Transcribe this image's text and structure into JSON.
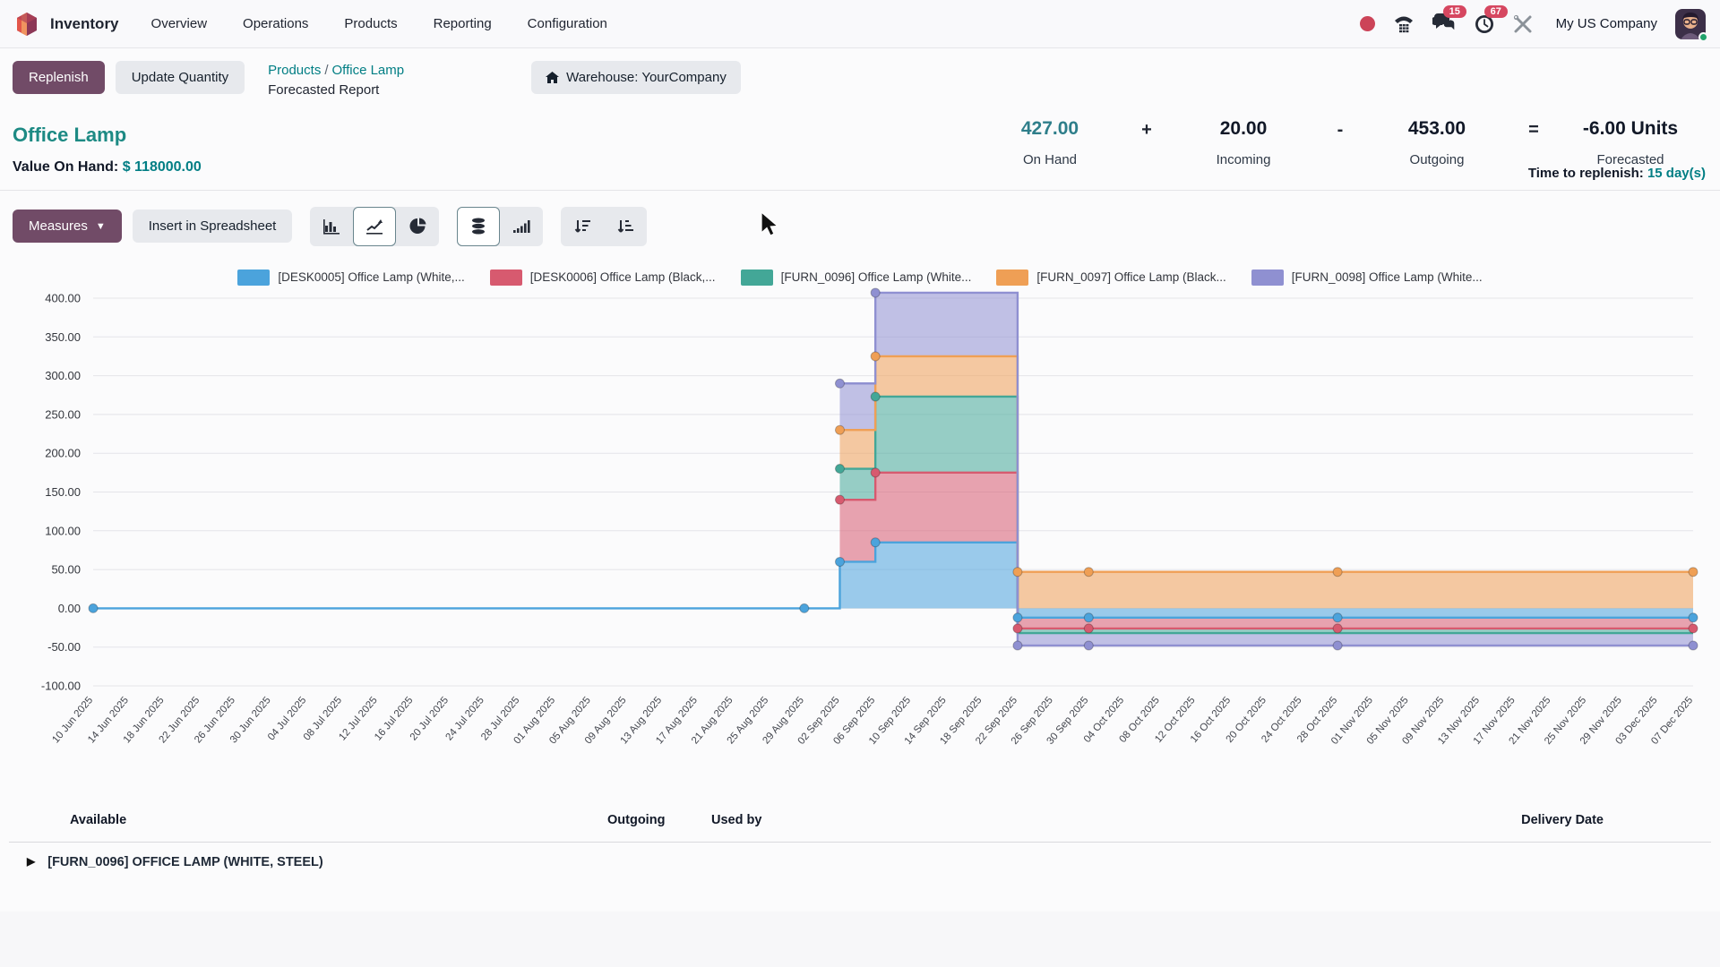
{
  "nav": {
    "app_label": "Inventory",
    "items": [
      "Overview",
      "Operations",
      "Products",
      "Reporting",
      "Configuration"
    ],
    "message_badge": "15",
    "activity_badge": "67",
    "company_label": "My US Company"
  },
  "control_panel": {
    "replenish_label": "Replenish",
    "update_quantity_label": "Update Quantity",
    "breadcrumb_products": "Products",
    "breadcrumb_sep": "/",
    "breadcrumb_product": "Office Lamp",
    "breadcrumb_active": "Forecasted Report",
    "warehouse_facet": "Warehouse: YourCompany"
  },
  "header": {
    "title": "Office Lamp",
    "value_on_hand_label": "Value On Hand:",
    "value_on_hand": "$ 118000.00",
    "kpis": [
      {
        "type": "metric",
        "value": "427.00",
        "label": "On Hand",
        "accent": true
      },
      {
        "type": "op",
        "value": "+"
      },
      {
        "type": "metric",
        "value": "20.00",
        "label": "Incoming",
        "accent": false
      },
      {
        "type": "op",
        "value": "-"
      },
      {
        "type": "metric",
        "value": "453.00",
        "label": "Outgoing",
        "accent": false
      },
      {
        "type": "op",
        "value": "="
      },
      {
        "type": "metric",
        "value": "-6.00 Units",
        "label": "Forecasted",
        "accent": false
      }
    ],
    "time_to_replenish_label": "Time to replenish:",
    "time_to_replenish_value": "15 day(s)"
  },
  "toolbar": {
    "measures_label": "Measures",
    "insert_label": "Insert in Spreadsheet"
  },
  "chart_data": {
    "type": "area",
    "subtype": "stepped-stacked-forecast",
    "title": "",
    "legend_position": "top",
    "grid": "horizontal",
    "ylim": [
      -100,
      400
    ],
    "y_ticks": [
      "400.00",
      "350.00",
      "300.00",
      "250.00",
      "200.00",
      "150.00",
      "100.00",
      "50.00",
      "0.00",
      "-50.00",
      "-100.00"
    ],
    "x_categories": [
      "10 Jun 2025",
      "14 Jun 2025",
      "18 Jun 2025",
      "22 Jun 2025",
      "26 Jun 2025",
      "30 Jun 2025",
      "04 Jul 2025",
      "08 Jul 2025",
      "12 Jul 2025",
      "16 Jul 2025",
      "20 Jul 2025",
      "24 Jul 2025",
      "28 Jul 2025",
      "01 Aug 2025",
      "05 Aug 2025",
      "09 Aug 2025",
      "13 Aug 2025",
      "17 Aug 2025",
      "21 Aug 2025",
      "25 Aug 2025",
      "29 Aug 2025",
      "02 Sep 2025",
      "06 Sep 2025",
      "10 Sep 2025",
      "14 Sep 2025",
      "18 Sep 2025",
      "22 Sep 2025",
      "26 Sep 2025",
      "30 Sep 2025",
      "04 Oct 2025",
      "08 Oct 2025",
      "12 Oct 2025",
      "16 Oct 2025",
      "20 Oct 2025",
      "24 Oct 2025",
      "28 Oct 2025",
      "01 Nov 2025",
      "05 Nov 2025",
      "09 Nov 2025",
      "13 Nov 2025",
      "17 Nov 2025",
      "21 Nov 2025",
      "25 Nov 2025",
      "29 Nov 2025",
      "03 Dec 2025",
      "07 Dec 2025"
    ],
    "note": "points are stepped cumulative stock levels (t = x_categories index, v = units); fill_to is the lower boundary of each colored band",
    "series": [
      {
        "name": "[DESK0005] Office Lamp (White,...",
        "color": "#4BA3DC",
        "points": [
          {
            "t": 0,
            "v": 0,
            "m": true
          },
          {
            "t": 20,
            "v": 0,
            "m": true
          },
          {
            "t": 21,
            "v": 60,
            "m": true
          },
          {
            "t": 22,
            "v": 85,
            "m": true
          },
          {
            "t": 26,
            "v": -12,
            "m": true
          },
          {
            "t": 28,
            "v": -12,
            "m": true
          },
          {
            "t": 35,
            "v": -12,
            "m": true
          },
          {
            "t": 45,
            "v": -12,
            "m": true
          }
        ],
        "fill_to": [
          {
            "t": 0,
            "v": 0
          },
          {
            "t": 26,
            "v": 0
          },
          {
            "t": 45,
            "v": 0
          }
        ]
      },
      {
        "name": "[DESK0006] Office Lamp (Black,...",
        "color": "#D75A6F",
        "points": [
          {
            "t": 21,
            "v": 140,
            "m": true
          },
          {
            "t": 22,
            "v": 175,
            "m": true
          },
          {
            "t": 26,
            "v": -26,
            "m": true
          },
          {
            "t": 28,
            "v": -26,
            "m": true
          },
          {
            "t": 35,
            "v": -26,
            "m": true
          },
          {
            "t": 45,
            "v": -26,
            "m": true
          }
        ],
        "fill_to": [
          {
            "t": 21,
            "v": 60
          },
          {
            "t": 22,
            "v": 85
          },
          {
            "t": 26,
            "v": -12
          },
          {
            "t": 45,
            "v": -12
          }
        ]
      },
      {
        "name": "[FURN_0096] Office Lamp (White...",
        "color": "#43A797",
        "points": [
          {
            "t": 21,
            "v": 180,
            "m": true
          },
          {
            "t": 22,
            "v": 273,
            "m": true
          },
          {
            "t": 26,
            "v": -32,
            "m": false
          },
          {
            "t": 45,
            "v": -32,
            "m": false
          }
        ],
        "fill_to": [
          {
            "t": 21,
            "v": 140
          },
          {
            "t": 22,
            "v": 175
          },
          {
            "t": 26,
            "v": -26
          },
          {
            "t": 45,
            "v": -26
          }
        ]
      },
      {
        "name": "[FURN_0097] Office Lamp (Black...",
        "color": "#EF9F55",
        "points": [
          {
            "t": 21,
            "v": 230,
            "m": true
          },
          {
            "t": 22,
            "v": 325,
            "m": true
          },
          {
            "t": 26,
            "v": 47,
            "m": true
          },
          {
            "t": 28,
            "v": 47,
            "m": true
          },
          {
            "t": 35,
            "v": 47,
            "m": true
          },
          {
            "t": 45,
            "v": 47,
            "m": true
          }
        ],
        "fill_to": [
          {
            "t": 21,
            "v": 180
          },
          {
            "t": 22,
            "v": 273
          },
          {
            "t": 26,
            "v": 0
          },
          {
            "t": 45,
            "v": 0
          }
        ]
      },
      {
        "name": "[FURN_0098] Office Lamp (White...",
        "color": "#8F90D1",
        "points": [
          {
            "t": 21,
            "v": 290,
            "m": true
          },
          {
            "t": 22,
            "v": 407,
            "m": true
          },
          {
            "t": 26,
            "v": -48,
            "m": true
          },
          {
            "t": 28,
            "v": -48,
            "m": true
          },
          {
            "t": 35,
            "v": -48,
            "m": true
          },
          {
            "t": 45,
            "v": -48,
            "m": true
          }
        ],
        "fill_to": [
          {
            "t": 21,
            "v": 230
          },
          {
            "t": 22,
            "v": 325
          },
          {
            "t": 26,
            "v": -32
          },
          {
            "t": 45,
            "v": -32
          }
        ]
      }
    ]
  },
  "bottom_table": {
    "headers": [
      "Available",
      "Outgoing",
      "Used by",
      "Delivery Date"
    ],
    "first_row_label": "[FURN_0096] OFFICE LAMP (WHITE, STEEL)"
  },
  "colors": {
    "accent_teal": "#017e84",
    "primary_button": "#714B67",
    "badge_red": "#d64760"
  }
}
